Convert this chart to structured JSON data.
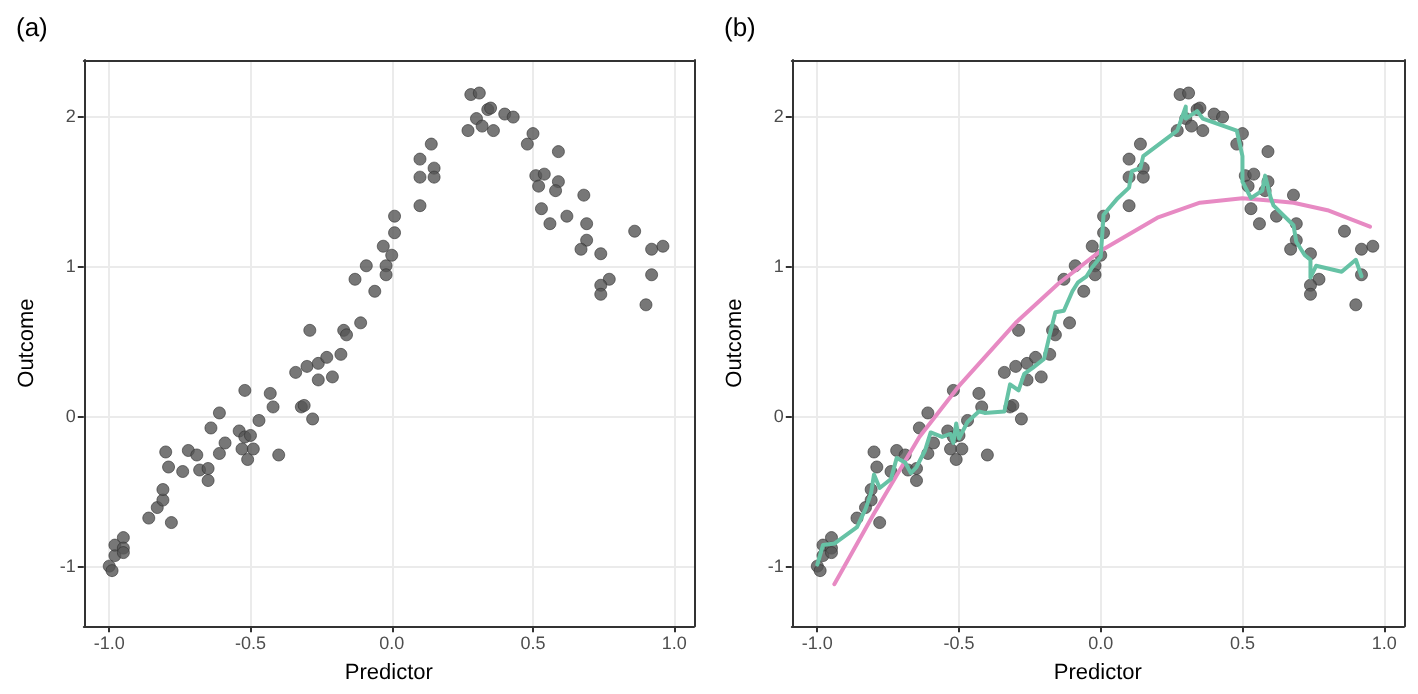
{
  "chart_data": [
    {
      "type": "scatter",
      "title": "(a)",
      "xlabel": "Predictor",
      "ylabel": "Outcome",
      "xlim": [
        -1.09,
        1.07
      ],
      "ylim": [
        -1.4,
        2.37
      ],
      "xticks": [
        {
          "value": -1,
          "label": "-1.0"
        },
        {
          "value": -0.5,
          "label": "-0.5"
        },
        {
          "value": 0,
          "label": "0.0"
        },
        {
          "value": 0.5,
          "label": "0.5"
        },
        {
          "value": 1,
          "label": "1.0"
        }
      ],
      "yticks": [
        -1,
        0,
        1,
        2
      ],
      "grid": true,
      "marker": "circle",
      "series": [
        {
          "color": "#555555",
          "x": [
            -1,
            -0.99,
            -0.98,
            -0.98,
            -0.95,
            -0.95,
            -0.95,
            -0.86,
            -0.83,
            -0.81,
            -0.81,
            -0.78,
            -0.8,
            -0.79,
            -0.74,
            -0.72,
            -0.69,
            -0.68,
            -0.65,
            -0.65,
            -0.64,
            -0.61,
            -0.61,
            -0.59,
            -0.54,
            -0.53,
            -0.52,
            -0.52,
            -0.51,
            -0.5,
            -0.49,
            -0.47,
            -0.43,
            -0.42,
            -0.4,
            -0.34,
            -0.32,
            -0.31,
            -0.3,
            -0.29,
            -0.28,
            -0.26,
            -0.26,
            -0.23,
            -0.21,
            -0.18,
            -0.17,
            -0.16,
            -0.13,
            -0.11,
            -0.09,
            -0.06,
            -0.03,
            -0.02,
            -0.02,
            0.0,
            0.01,
            0.01,
            0.1,
            0.1,
            0.1,
            0.14,
            0.15,
            0.15,
            0.27,
            0.28,
            0.31,
            0.3,
            0.32,
            0.34,
            0.35,
            0.36,
            0.4,
            0.43,
            0.48,
            0.5,
            0.59,
            0.51,
            0.54,
            0.52,
            0.59,
            0.58,
            0.53,
            0.56,
            0.62,
            0.68,
            0.69,
            0.69,
            0.67,
            0.74,
            0.77,
            0.74,
            0.74,
            0.86,
            0.92,
            0.96,
            0.92,
            0.9
          ],
          "values": [
            -1.0,
            -1.03,
            -0.93,
            -0.86,
            -0.81,
            -0.88,
            -0.91,
            -0.68,
            -0.61,
            -0.56,
            -0.49,
            -0.71,
            -0.24,
            -0.34,
            -0.37,
            -0.23,
            -0.26,
            -0.36,
            -0.35,
            -0.43,
            -0.08,
            -0.25,
            0.02,
            -0.18,
            -0.1,
            -0.22,
            -0.14,
            0.17,
            -0.29,
            -0.13,
            -0.22,
            -0.03,
            0.15,
            0.06,
            -0.26,
            0.29,
            0.06,
            0.07,
            0.33,
            0.57,
            -0.02,
            0.35,
            0.24,
            0.39,
            0.26,
            0.41,
            0.57,
            0.54,
            0.91,
            0.62,
            1.0,
            0.83,
            1.13,
            1.0,
            0.94,
            1.07,
            1.22,
            1.33,
            1.4,
            1.59,
            1.71,
            1.81,
            1.65,
            1.59,
            1.9,
            2.14,
            2.15,
            1.98,
            1.93,
            2.04,
            2.05,
            1.9,
            2.01,
            1.99,
            1.81,
            1.88,
            1.76,
            1.6,
            1.61,
            1.53,
            1.56,
            1.5,
            1.38,
            1.28,
            1.33,
            1.47,
            1.28,
            1.17,
            1.11,
            1.08,
            0.91,
            0.87,
            0.81,
            1.23,
            1.11,
            1.13,
            0.94,
            0.74
          ]
        }
      ]
    },
    {
      "type": "scatter",
      "title": "(b)",
      "xlabel": "Predictor",
      "ylabel": "Outcome",
      "xlim": [
        -1.09,
        1.07
      ],
      "ylim": [
        -1.4,
        2.37
      ],
      "xticks": [
        {
          "value": -1,
          "label": "-1.0"
        },
        {
          "value": -0.5,
          "label": "-0.5"
        },
        {
          "value": 0,
          "label": "0.0"
        },
        {
          "value": 0.5,
          "label": "0.5"
        },
        {
          "value": 1,
          "label": "1.0"
        }
      ],
      "yticks": [
        -1,
        0,
        1,
        2
      ],
      "grid": true,
      "marker": "circle",
      "series": [
        {
          "color": "#555555",
          "x": [
            -1,
            -0.99,
            -0.98,
            -0.98,
            -0.95,
            -0.95,
            -0.95,
            -0.86,
            -0.83,
            -0.81,
            -0.81,
            -0.78,
            -0.8,
            -0.79,
            -0.74,
            -0.72,
            -0.69,
            -0.68,
            -0.65,
            -0.65,
            -0.64,
            -0.61,
            -0.61,
            -0.59,
            -0.54,
            -0.53,
            -0.52,
            -0.52,
            -0.51,
            -0.5,
            -0.49,
            -0.47,
            -0.43,
            -0.42,
            -0.4,
            -0.34,
            -0.32,
            -0.31,
            -0.3,
            -0.29,
            -0.28,
            -0.26,
            -0.26,
            -0.23,
            -0.21,
            -0.18,
            -0.17,
            -0.16,
            -0.13,
            -0.11,
            -0.09,
            -0.06,
            -0.03,
            -0.02,
            -0.02,
            0.0,
            0.01,
            0.01,
            0.1,
            0.1,
            0.1,
            0.14,
            0.15,
            0.15,
            0.27,
            0.28,
            0.31,
            0.3,
            0.32,
            0.34,
            0.35,
            0.36,
            0.4,
            0.43,
            0.48,
            0.5,
            0.59,
            0.51,
            0.54,
            0.52,
            0.59,
            0.58,
            0.53,
            0.56,
            0.62,
            0.68,
            0.69,
            0.69,
            0.67,
            0.74,
            0.77,
            0.74,
            0.74,
            0.86,
            0.92,
            0.96,
            0.92,
            0.9
          ],
          "values": [
            -1.0,
            -1.03,
            -0.93,
            -0.86,
            -0.81,
            -0.88,
            -0.91,
            -0.68,
            -0.61,
            -0.56,
            -0.49,
            -0.71,
            -0.24,
            -0.34,
            -0.37,
            -0.23,
            -0.26,
            -0.36,
            -0.35,
            -0.43,
            -0.08,
            -0.25,
            0.02,
            -0.18,
            -0.1,
            -0.22,
            -0.14,
            0.17,
            -0.29,
            -0.13,
            -0.22,
            -0.03,
            0.15,
            0.06,
            -0.26,
            0.29,
            0.06,
            0.07,
            0.33,
            0.57,
            -0.02,
            0.35,
            0.24,
            0.39,
            0.26,
            0.41,
            0.57,
            0.54,
            0.91,
            0.62,
            1.0,
            0.83,
            1.13,
            1.0,
            0.94,
            1.07,
            1.22,
            1.33,
            1.4,
            1.59,
            1.71,
            1.81,
            1.65,
            1.59,
            1.9,
            2.14,
            2.15,
            1.98,
            1.93,
            2.04,
            2.05,
            1.9,
            2.01,
            1.99,
            1.81,
            1.88,
            1.76,
            1.6,
            1.61,
            1.53,
            1.56,
            1.5,
            1.38,
            1.28,
            1.33,
            1.47,
            1.28,
            1.17,
            1.11,
            1.08,
            0.91,
            0.87,
            0.81,
            1.23,
            1.11,
            1.13,
            0.94,
            0.74
          ]
        },
        {
          "type": "line",
          "color": "#e78ac3",
          "marker": "none",
          "line_style": "solid",
          "x": [
            -0.94,
            -0.8,
            -0.64,
            -0.5,
            -0.3,
            -0.15,
            0,
            0.2,
            0.35,
            0.5,
            0.68,
            0.8,
            0.95
          ],
          "values": [
            -1.12,
            -0.65,
            -0.14,
            0.2,
            0.62,
            0.88,
            1.1,
            1.32,
            1.42,
            1.45,
            1.42,
            1.37,
            1.26
          ]
        },
        {
          "type": "line",
          "color": "#66c2a5",
          "marker": "none",
          "line_style": "solid",
          "x": [
            -1.0,
            -0.98,
            -0.94,
            -0.86,
            -0.83,
            -0.81,
            -0.8,
            -0.78,
            -0.74,
            -0.72,
            -0.69,
            -0.67,
            -0.65,
            -0.62,
            -0.6,
            -0.56,
            -0.53,
            -0.52,
            -0.51,
            -0.5,
            -0.47,
            -0.43,
            -0.41,
            -0.34,
            -0.32,
            -0.29,
            -0.27,
            -0.24,
            -0.2,
            -0.18,
            -0.16,
            -0.13,
            -0.1,
            -0.08,
            -0.05,
            -0.03,
            0.0,
            0.01,
            0.06,
            0.1,
            0.11,
            0.14,
            0.15,
            0.27,
            0.3,
            0.3,
            0.34,
            0.36,
            0.48,
            0.5,
            0.5,
            0.53,
            0.57,
            0.58,
            0.6,
            0.61,
            0.68,
            0.69,
            0.72,
            0.74,
            0.74,
            0.76,
            0.85,
            0.9,
            0.92
          ],
          "values": [
            -0.99,
            -0.86,
            -0.85,
            -0.74,
            -0.62,
            -0.51,
            -0.39,
            -0.48,
            -0.42,
            -0.28,
            -0.31,
            -0.38,
            -0.34,
            -0.23,
            -0.11,
            -0.14,
            -0.12,
            -0.18,
            -0.05,
            -0.15,
            -0.04,
            0.03,
            0.02,
            0.03,
            0.21,
            0.17,
            0.28,
            0.32,
            0.38,
            0.54,
            0.69,
            0.7,
            0.83,
            0.89,
            0.93,
            0.99,
            1.06,
            1.34,
            1.45,
            1.52,
            1.63,
            1.65,
            1.73,
            1.9,
            2.06,
            1.98,
            2.03,
            1.98,
            1.9,
            1.73,
            1.56,
            1.45,
            1.5,
            1.6,
            1.45,
            1.4,
            1.27,
            1.16,
            1.07,
            1.04,
            0.92,
            1.0,
            0.96,
            1.04,
            0.93
          ]
        }
      ]
    }
  ]
}
